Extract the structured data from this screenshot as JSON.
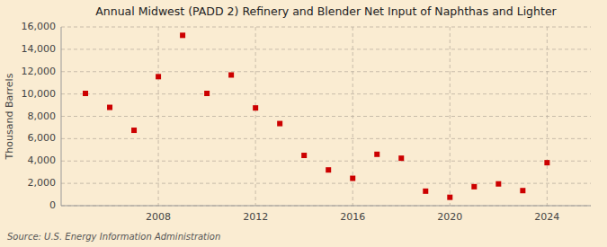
{
  "chart_data": {
    "type": "scatter",
    "title": "Annual Midwest (PADD 2) Refinery and Blender Net Input of Naphthas and Lighter",
    "y_label": "Thousand Barrels",
    "source": "Source: U.S. Energy Information Administration",
    "x": [
      2005,
      2006,
      2007,
      2008,
      2009,
      2010,
      2011,
      2012,
      2013,
      2014,
      2015,
      2016,
      2017,
      2018,
      2019,
      2020,
      2021,
      2022,
      2023,
      2024
    ],
    "values": [
      10050,
      8800,
      6750,
      11550,
      15250,
      10050,
      11700,
      8750,
      7350,
      4500,
      3200,
      2450,
      4600,
      4250,
      1300,
      750,
      1700,
      1950,
      1350,
      3850
    ],
    "color": "#cc0000",
    "marker": "square",
    "xlim": [
      2004,
      2025.8
    ],
    "xticks": [
      2008,
      2012,
      2016,
      2020,
      2024
    ],
    "ylim": [
      0,
      16000
    ],
    "yticks": [
      0,
      {
        "value": 2000,
        "label": "2,000"
      },
      {
        "value": 4000,
        "label": "4,000"
      },
      {
        "value": 6000,
        "label": "6,000"
      },
      {
        "value": 8000,
        "label": "8,000"
      },
      {
        "value": 10000,
        "label": "10,000"
      },
      {
        "value": 12000,
        "label": "12,000"
      },
      {
        "value": 14000,
        "label": "14,000"
      },
      {
        "value": 16000,
        "label": "16,000"
      }
    ],
    "grid": true
  }
}
